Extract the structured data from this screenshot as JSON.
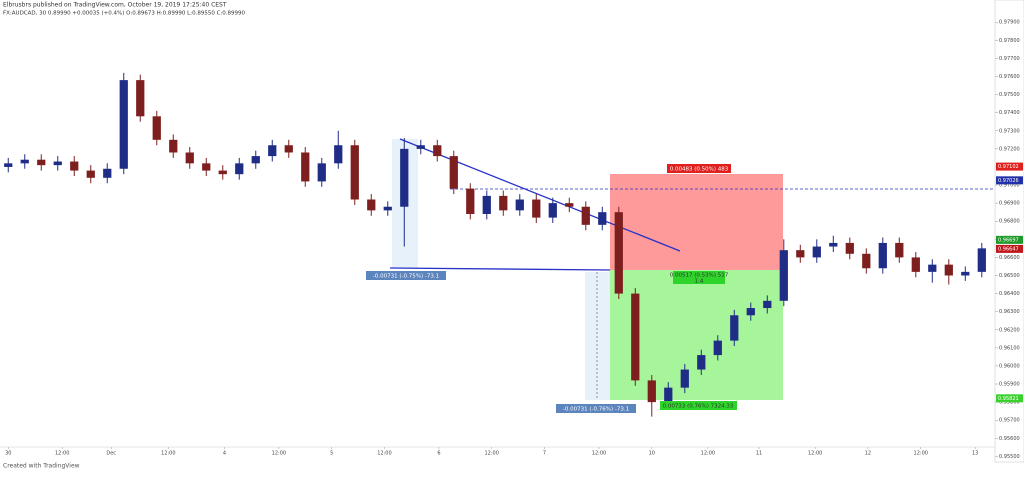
{
  "header": {
    "published": "Elbrusbrs published on TradingView.com, October 19, 2019 17:25:40 CEST",
    "symbol_line": "FX:AUDCAD, 30  0.89990 +0.00035 (+0.4%)  O:0.89673 H:0.89990 L:0.89550 C:0.89990"
  },
  "chart_data": {
    "type": "candlestick",
    "open": [
      0.971,
      0.9712,
      0.9714,
      0.9711,
      0.9713,
      0.9708,
      0.9704,
      0.9709,
      0.9758,
      0.9738,
      0.9725,
      0.9718,
      0.9712,
      0.9708,
      0.9706,
      0.9712,
      0.9716,
      0.9722,
      0.9718,
      0.9702,
      0.9712,
      0.9722,
      0.9692,
      0.9686,
      0.9688,
      0.972,
      0.9722,
      0.9716,
      0.9698,
      0.9684,
      0.9694,
      0.9686,
      0.9692,
      0.9682,
      0.969,
      0.9688,
      0.9678,
      0.9685,
      0.964,
      0.9592,
      0.958,
      0.9588,
      0.9598,
      0.9606,
      0.9614,
      0.9628,
      0.9632,
      0.9636,
      0.9664,
      0.966,
      0.9666,
      0.9668,
      0.9662,
      0.9654,
      0.9668,
      0.966,
      0.9652,
      0.9656,
      0.965,
      0.9652
    ],
    "high": [
      0.9715,
      0.9717,
      0.9717,
      0.9716,
      0.9716,
      0.9711,
      0.9712,
      0.9762,
      0.9761,
      0.9741,
      0.9728,
      0.9721,
      0.9715,
      0.9711,
      0.9715,
      0.9719,
      0.9725,
      0.9725,
      0.9721,
      0.9715,
      0.973,
      0.9725,
      0.9695,
      0.9691,
      0.9726,
      0.9725,
      0.9725,
      0.9719,
      0.9701,
      0.9697,
      0.9697,
      0.9695,
      0.9695,
      0.9693,
      0.9693,
      0.9691,
      0.9688,
      0.9688,
      0.9643,
      0.9595,
      0.9591,
      0.9601,
      0.9609,
      0.9617,
      0.9631,
      0.9635,
      0.9639,
      0.967,
      0.9667,
      0.967,
      0.9672,
      0.9671,
      0.9665,
      0.9671,
      0.9671,
      0.9663,
      0.9659,
      0.9659,
      0.9655,
      0.9668
    ],
    "low": [
      0.9707,
      0.9709,
      0.9708,
      0.9708,
      0.9705,
      0.9701,
      0.9701,
      0.9706,
      0.9735,
      0.9722,
      0.9715,
      0.9709,
      0.9705,
      0.9703,
      0.9703,
      0.9709,
      0.9713,
      0.9715,
      0.9699,
      0.9699,
      0.9709,
      0.9689,
      0.9683,
      0.9683,
      0.9666,
      0.9717,
      0.9713,
      0.9695,
      0.9681,
      0.9681,
      0.9683,
      0.9683,
      0.9679,
      0.9679,
      0.9685,
      0.9675,
      0.9675,
      0.9637,
      0.9589,
      0.9572,
      0.9577,
      0.9585,
      0.9595,
      0.9603,
      0.9611,
      0.9625,
      0.9629,
      0.9633,
      0.9657,
      0.9657,
      0.9663,
      0.9659,
      0.9651,
      0.9651,
      0.9657,
      0.9649,
      0.9646,
      0.9645,
      0.9647,
      0.9649
    ],
    "close": [
      0.9712,
      0.9714,
      0.9711,
      0.9713,
      0.9708,
      0.9704,
      0.9709,
      0.9758,
      0.9738,
      0.9725,
      0.9718,
      0.9712,
      0.9708,
      0.9706,
      0.9712,
      0.9716,
      0.9722,
      0.9718,
      0.9702,
      0.9712,
      0.9722,
      0.9692,
      0.9686,
      0.9688,
      0.972,
      0.9722,
      0.9716,
      0.9698,
      0.9684,
      0.9694,
      0.9686,
      0.9692,
      0.9682,
      0.969,
      0.9688,
      0.9678,
      0.9685,
      0.964,
      0.9592,
      0.958,
      0.9588,
      0.9598,
      0.9606,
      0.9614,
      0.9628,
      0.9632,
      0.9636,
      0.9664,
      0.966,
      0.9666,
      0.9668,
      0.9662,
      0.9654,
      0.9668,
      0.966,
      0.9652,
      0.9656,
      0.965,
      0.9652,
      0.9665
    ],
    "up_color": "#1f2d87",
    "down_color": "#7d1f1f",
    "xlim": [
      -0.5,
      59.8
    ],
    "ylim": [
      0.9548,
      0.9794
    ],
    "xticks": [
      {
        "value": 0,
        "label": "30"
      },
      {
        "value": 3.27,
        "label": "12:00"
      },
      {
        "value": 6.24,
        "label": "Dec"
      },
      {
        "value": 9.7,
        "label": "12:00"
      },
      {
        "value": 13.1,
        "label": "4"
      },
      {
        "value": 16.4,
        "label": "12:00"
      },
      {
        "value": 19.6,
        "label": "5"
      },
      {
        "value": 22.8,
        "label": "12:00"
      },
      {
        "value": 26.1,
        "label": "6"
      },
      {
        "value": 29.3,
        "label": "12:00"
      },
      {
        "value": 32.5,
        "label": "7"
      },
      {
        "value": 35.8,
        "label": "12:00"
      },
      {
        "value": 39,
        "label": "10"
      },
      {
        "value": 42.4,
        "label": "12:00"
      },
      {
        "value": 45.5,
        "label": "11"
      },
      {
        "value": 48.9,
        "label": "12:00"
      },
      {
        "value": 52.1,
        "label": "12"
      },
      {
        "value": 55.3,
        "label": "12:00"
      },
      {
        "value": 58.6,
        "label": "13"
      }
    ],
    "yticks": [
      {
        "value": 0.979,
        "label": "0.97900"
      },
      {
        "value": 0.978,
        "label": "0.97800"
      },
      {
        "value": 0.977,
        "label": "0.97700"
      },
      {
        "value": 0.976,
        "label": "0.97600"
      },
      {
        "value": 0.975,
        "label": "0.97500"
      },
      {
        "value": 0.974,
        "label": "0.97400"
      },
      {
        "value": 0.973,
        "label": "0.97300"
      },
      {
        "value": 0.972,
        "label": "0.97200"
      },
      {
        "value": 0.971,
        "label": "0.97100"
      },
      {
        "value": 0.97,
        "label": "0.97000"
      },
      {
        "value": 0.969,
        "label": "0.96900"
      },
      {
        "value": 0.968,
        "label": "0.96800"
      },
      {
        "value": 0.967,
        "label": "0.96700"
      },
      {
        "value": 0.966,
        "label": "0.96600"
      },
      {
        "value": 0.965,
        "label": "0.96500"
      },
      {
        "value": 0.964,
        "label": "0.96400"
      },
      {
        "value": 0.963,
        "label": "0.96300"
      },
      {
        "value": 0.962,
        "label": "0.96200"
      },
      {
        "value": 0.961,
        "label": "0.96100"
      },
      {
        "value": 0.96,
        "label": "0.96000"
      },
      {
        "value": 0.959,
        "label": "0.95900"
      },
      {
        "value": 0.958,
        "label": "0.95800"
      },
      {
        "value": 0.957,
        "label": "0.95700"
      },
      {
        "value": 0.956,
        "label": "0.95600"
      },
      {
        "value": 0.955,
        "label": "0.95500"
      }
    ],
    "grid": false,
    "price_tags": [
      {
        "value": 0.97102,
        "color": "#e0201c"
      },
      {
        "value": 0.97026,
        "color": "#2130a8"
      },
      {
        "value": 0.96697,
        "color": "#1f9a2a"
      },
      {
        "value": 0.96647,
        "color": "#c0181c"
      },
      {
        "value": 0.95821,
        "color": "#3ad12d"
      }
    ],
    "annotations": {
      "stop": "0.00483 (0.50%) 483",
      "entry": "0.00517 (0.53%) 517",
      "ratio": "1.4",
      "target": "0.00733 (0.76%) 7324.33",
      "measure_top": "-0.00731 (-0.75%) -73.1",
      "measure_bottom": "-0.00731 (-0.76%) -73.1"
    }
  },
  "footer": "Created with TradingView"
}
